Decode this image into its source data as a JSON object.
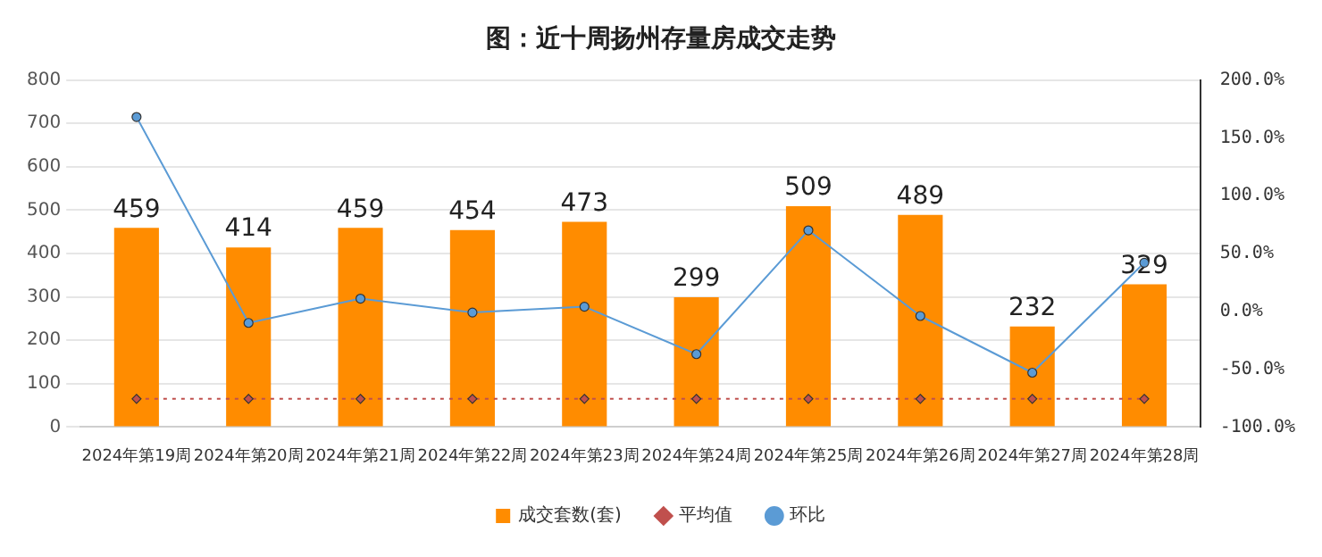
{
  "chart_data": {
    "type": "bar",
    "title": "图：近十周扬州存量房成交走势",
    "categories": [
      "2024年第19周",
      "2024年第20周",
      "2024年第21周",
      "2024年第22周",
      "2024年第23周",
      "2024年第24周",
      "2024年第25周",
      "2024年第26周",
      "2024年第27周",
      "2024年第28周"
    ],
    "series": [
      {
        "name": "成交套数(套)",
        "color": "#ff8c00",
        "values": [
          459,
          414,
          459,
          454,
          473,
          299,
          509,
          489,
          232,
          329
        ],
        "value_labels": [
          "459",
          "414",
          "459",
          "454",
          "473",
          "299",
          "509",
          "489",
          "232",
          "329"
        ]
      },
      {
        "name": "平均值",
        "type": "line",
        "color": "#c0504d",
        "line_style": "dotted",
        "marker": "diamond",
        "values": [
          65,
          65,
          65,
          65,
          65,
          65,
          65,
          65,
          65,
          65
        ]
      },
      {
        "name": "环比",
        "type": "line",
        "axis": "y2",
        "color": "#5b9bd5",
        "line_style": "solid",
        "marker": "circle",
        "values": [
          168,
          -10,
          11,
          -1,
          4,
          -37,
          70,
          -4,
          -53,
          42
        ]
      }
    ],
    "ylim": [
      0,
      800
    ],
    "yticks": [
      0,
      100,
      200,
      300,
      400,
      500,
      600,
      700,
      800
    ],
    "y2lim": [
      -100,
      200
    ],
    "y2ticks": [
      {
        "value": -100,
        "label": "-100.0%"
      },
      {
        "value": -50,
        "label": "-50.0%"
      },
      {
        "value": 0,
        "label": "0.0%"
      },
      {
        "value": 50,
        "label": "50.0%"
      },
      {
        "value": 100,
        "label": "100.0%"
      },
      {
        "value": 150,
        "label": "150.0%"
      },
      {
        "value": 200,
        "label": "200.0%"
      }
    ],
    "grid": "y",
    "legend": "bottom"
  }
}
